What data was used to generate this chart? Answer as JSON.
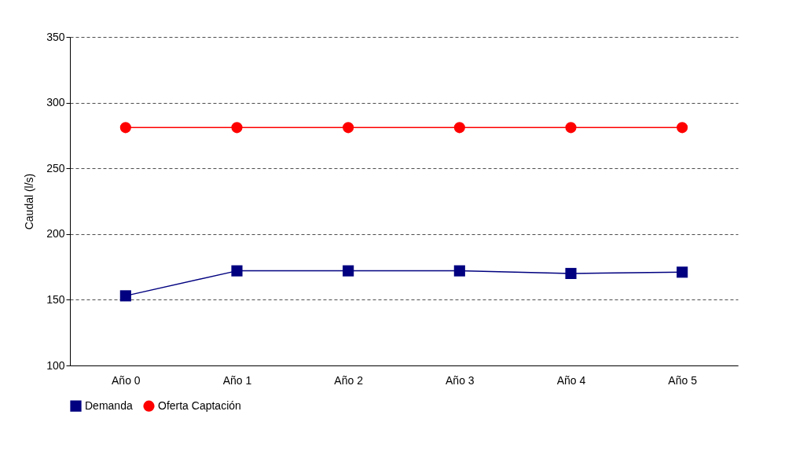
{
  "chart_data": {
    "type": "line",
    "ylabel": "Caudal (l/s)",
    "categories": [
      "Año 0",
      "Año 1",
      "Año 2",
      "Año 3",
      "Año 4",
      "Año 5"
    ],
    "series": [
      {
        "name": "Demanda",
        "color": "#000080",
        "marker": "square",
        "values": [
          153,
          172,
          172,
          172,
          170,
          171
        ]
      },
      {
        "name": "Oferta Captación",
        "color": "#ff0000",
        "marker": "circle",
        "values": [
          281,
          281,
          281,
          281,
          281,
          281
        ]
      }
    ],
    "ylim": [
      100,
      350
    ],
    "yticks": [
      100,
      150,
      200,
      250,
      300,
      350
    ],
    "grid": "y",
    "line_style": "solid",
    "legend": "bottom"
  }
}
